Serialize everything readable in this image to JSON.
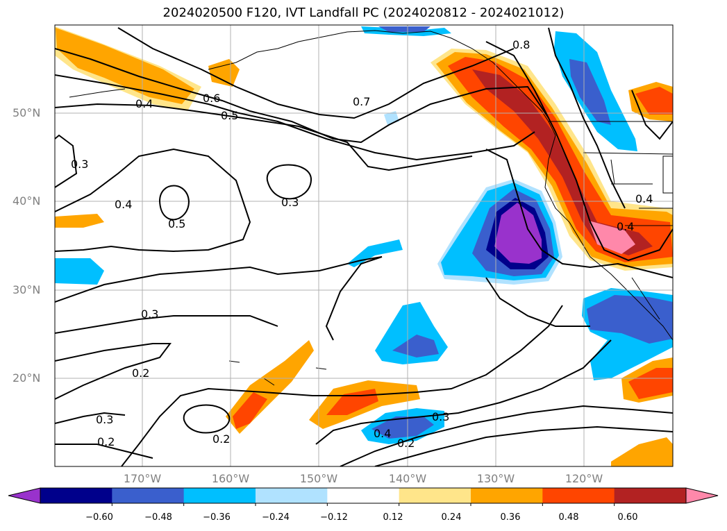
{
  "title": "2024020500 F120, IVT Landfall PC (2024020812 - 2024021012)",
  "lat_labels": [
    "50°N",
    "40°N",
    "30°N",
    "20°N"
  ],
  "lon_labels": [
    "170°W",
    "160°W",
    "150°W",
    "140°W",
    "130°W",
    "120°W"
  ],
  "colorbar": {
    "ticks": [
      "−0.60",
      "−0.48",
      "−0.36",
      "−0.24",
      "−0.12",
      "0.12",
      "0.24",
      "0.36",
      "0.48",
      "0.60"
    ],
    "colors": [
      "#9932cc",
      "#00008b",
      "#3a5fcd",
      "#00bfff",
      "#b0e2ff",
      "#ffffff",
      "#ffe58a",
      "#ffa500",
      "#ff4500",
      "#b22222",
      "#ff88aa"
    ],
    "extend": "both"
  },
  "contour_labels": [
    "0.4",
    "0.6",
    "0.5",
    "0.7",
    "0.8",
    "0.3",
    "0.4",
    "0.5",
    "0.3",
    "0.4",
    "0.4",
    "0.3",
    "0.2",
    "0.3",
    "0.2",
    "0.2",
    "0.4",
    "0.3",
    "0.2"
  ]
}
